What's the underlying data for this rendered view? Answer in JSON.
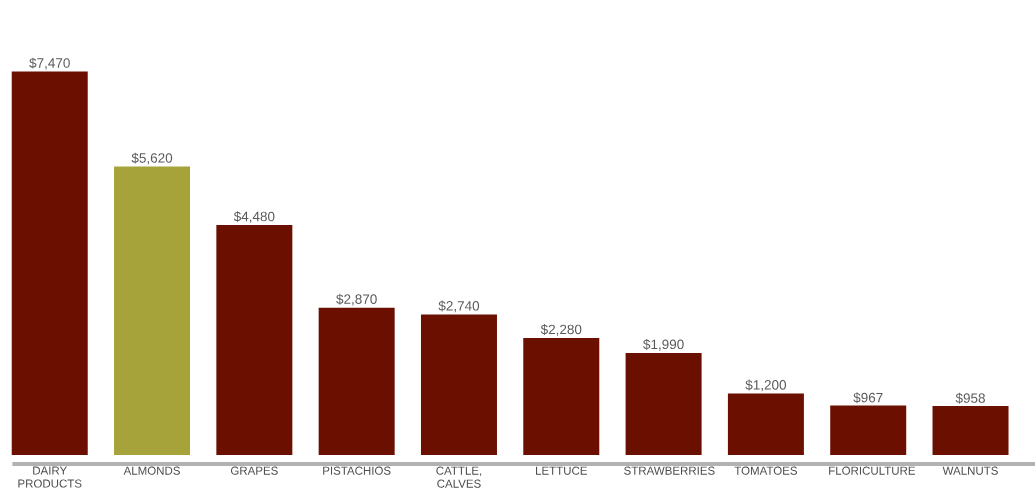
{
  "chart_data": {
    "type": "bar",
    "categories": [
      "DAIRY PRODUCTS",
      "ALMONDS",
      "GRAPES",
      "PISTACHIOS",
      "CATTLE, CALVES",
      "LETTUCE",
      "STRAWBERRIES",
      "TOMATOES",
      "FLORICULTURE",
      "WALNUTS"
    ],
    "values": [
      7470,
      5620,
      4480,
      2870,
      2740,
      2280,
      1990,
      1200,
      967,
      958
    ],
    "colors": [
      "#6b0f00",
      "#a5a33a",
      "#6b0f00",
      "#6b0f00",
      "#6b0f00",
      "#6b0f00",
      "#6b0f00",
      "#6b0f00",
      "#6b0f00",
      "#6b0f00"
    ],
    "value_labels": [
      "$7,470",
      "$5,620",
      "$4,480",
      "$2,870",
      "$2,740",
      "$2,280",
      "$1,990",
      "$1,200",
      "$967",
      "$958"
    ]
  }
}
